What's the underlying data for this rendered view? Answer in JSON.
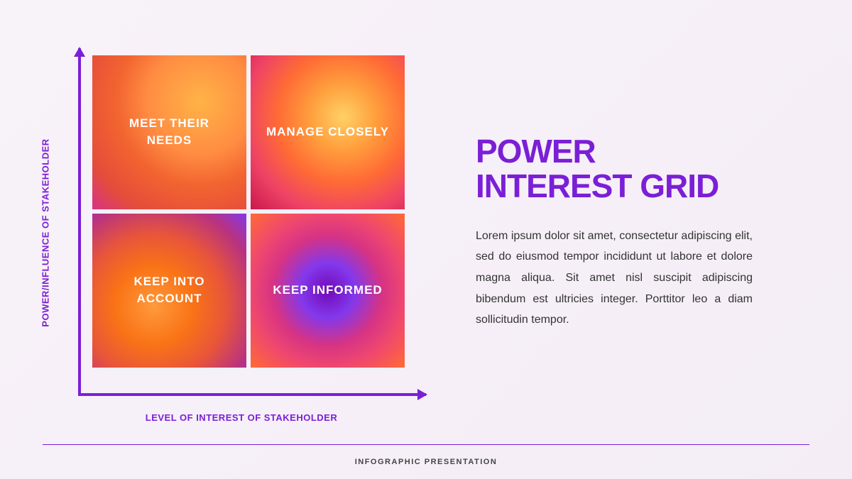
{
  "colors": {
    "primary": "#7b1fd6",
    "background": "#f5eef7",
    "body_text": "#333333",
    "quad_text": "#ffffff",
    "footer_line": "#7b1fd6",
    "footer_text": "#444444"
  },
  "chart": {
    "type": "quadrant",
    "y_axis_label": "POWER/INFLUENCE OF STAKEHOLDER",
    "x_axis_label": "LEVEL OF INTEREST OF STAKEHOLDER",
    "axis_label_fontsize": 13,
    "axis_color": "#7b1fd6",
    "axis_width": 4,
    "quadrants": {
      "top_left": {
        "label": "MEET THEIR NEEDS",
        "gradient_colors": [
          "#ffb347",
          "#ff8c42",
          "#f26430",
          "#e44d3a",
          "#d63384"
        ]
      },
      "top_right": {
        "label": "MANAGE CLOSELY",
        "gradient_colors": [
          "#ffd166",
          "#ff9f3d",
          "#ff6b35",
          "#ee4266",
          "#c9184a"
        ]
      },
      "bottom_left": {
        "label": "KEEP INTO ACCOUNT",
        "gradient_colors": [
          "#ff9a3c",
          "#f97316",
          "#e8553a",
          "#b83280",
          "#8338ec"
        ]
      },
      "bottom_right": {
        "label": "KEEP INFORMED",
        "gradient_colors": [
          "#7209b7",
          "#8338ec",
          "#d63384",
          "#ef476f",
          "#ff6b35"
        ]
      }
    },
    "quad_label_fontsize": 17,
    "quad_gap": 6,
    "quad_text_color": "#ffffff"
  },
  "content": {
    "title": "POWER INTEREST GRID",
    "title_fontsize": 46,
    "title_color": "#7b1fd6",
    "body": "Lorem ipsum dolor sit amet, consectetur adipiscing elit, sed do eiusmod tempor incididunt ut labore et dolore magna aliqua. Sit amet nisl suscipit adipiscing bibendum est ultricies integer. Porttitor leo a diam sollicitudin tempor.",
    "body_fontsize": 16
  },
  "footer": {
    "text": "INFOGRAPHIC PRESENTATION",
    "fontsize": 11
  }
}
